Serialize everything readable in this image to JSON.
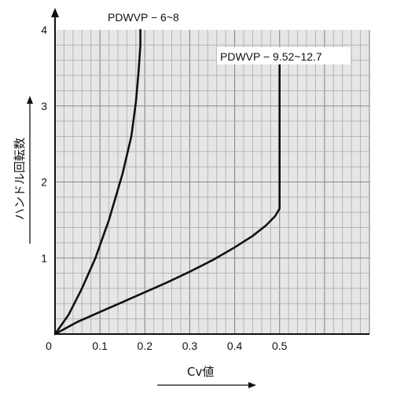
{
  "chart_data": {
    "type": "line",
    "xlabel": "Cv値",
    "ylabel": "ハンドル回転数",
    "xlim": [
      0,
      0.7
    ],
    "ylim": [
      0,
      4
    ],
    "x_ticks": [
      0,
      0.1,
      0.2,
      0.3,
      0.4,
      0.5
    ],
    "y_ticks": [
      1,
      2,
      3,
      4
    ],
    "grid": true,
    "colors": {
      "grid_major": "#888888",
      "grid_minor": "#b0b0b0",
      "plot_bg": "#e6e6e6",
      "line": "#111111"
    },
    "series": [
      {
        "name": "PDWVP − 6~8",
        "x": [
          0,
          0.03,
          0.06,
          0.09,
          0.12,
          0.15,
          0.17,
          0.18,
          0.186,
          0.19,
          0.19
        ],
        "y": [
          0,
          0.25,
          0.6,
          1.0,
          1.5,
          2.1,
          2.6,
          3.05,
          3.45,
          3.8,
          4.0
        ]
      },
      {
        "name": "PDWVP − 9.52~12.7",
        "x": [
          0,
          0.05,
          0.1,
          0.15,
          0.2,
          0.25,
          0.3,
          0.35,
          0.4,
          0.44,
          0.47,
          0.49,
          0.5,
          0.5,
          0.5
        ],
        "y": [
          0,
          0.16,
          0.29,
          0.42,
          0.55,
          0.68,
          0.82,
          0.97,
          1.14,
          1.29,
          1.43,
          1.55,
          1.65,
          2.0,
          3.55
        ]
      }
    ]
  }
}
